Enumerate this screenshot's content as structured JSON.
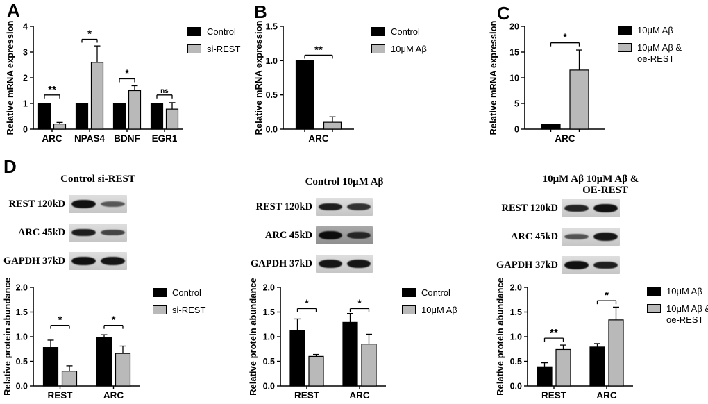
{
  "figure": {
    "panel_labels": {
      "a": "A",
      "b": "B",
      "c": "C",
      "d": "D"
    },
    "colors": {
      "series_black": "#000000",
      "series_gray": "#b9b9b9",
      "blot_bg_light": "#d9d9d9",
      "blot_bg_dark": "#a8a8a8"
    }
  },
  "chart_data": [
    {
      "id": "a",
      "panel": "A",
      "type": "bar",
      "title": "",
      "xlabel": "",
      "ylabel": "Relative mRNA expression",
      "ylim": [
        0,
        4
      ],
      "yticks": [
        "0",
        "1",
        "2",
        "3",
        "4"
      ],
      "categories": [
        "ARC",
        "NPAS4",
        "BDNF",
        "EGR1"
      ],
      "series": [
        {
          "name": "Control",
          "color": "#000000",
          "values": [
            1.0,
            1.0,
            1.0,
            1.0
          ],
          "errors": [
            0,
            0,
            0,
            0
          ]
        },
        {
          "name": "si-REST",
          "color": "#b9b9b9",
          "values": [
            0.2,
            2.6,
            1.5,
            0.78
          ],
          "errors": [
            0.06,
            0.64,
            0.19,
            0.25
          ]
        }
      ],
      "significance": [
        {
          "label": "**",
          "y": 1.33
        },
        {
          "label": "*",
          "y": 3.5
        },
        {
          "label": "*",
          "y": 1.96
        },
        {
          "label": "ns",
          "y": 1.33
        }
      ],
      "legend_position": "right"
    },
    {
      "id": "b",
      "panel": "B",
      "type": "bar",
      "title": "",
      "xlabel": "",
      "ylabel": "Relative mRNA expression",
      "ylim": [
        0,
        1.5
      ],
      "yticks": [
        "0.0",
        "0.5",
        "1.0",
        "1.5"
      ],
      "categories": [
        "ARC"
      ],
      "series": [
        {
          "name": "Control",
          "color": "#000000",
          "values": [
            1.0
          ],
          "errors": [
            0
          ]
        },
        {
          "name": "10μM Aβ",
          "color": "#b9b9b9",
          "values": [
            0.1
          ],
          "errors": [
            0.08
          ]
        }
      ],
      "significance": [
        {
          "label": "**",
          "y": 1.08
        }
      ],
      "legend_position": "right"
    },
    {
      "id": "c",
      "panel": "C",
      "type": "bar",
      "title": "",
      "xlabel": "",
      "ylabel": "Relative mRNA expression",
      "ylim": [
        0,
        20
      ],
      "yticks": [
        "0",
        "5",
        "10",
        "15",
        "20"
      ],
      "categories": [
        "ARC"
      ],
      "series": [
        {
          "name": "10μM Aβ",
          "color": "#000000",
          "values": [
            1.0
          ],
          "errors": [
            0
          ]
        },
        {
          "name": "10μM Aβ & oe-REST",
          "legend_lines": [
            "10μM Aβ &",
            "oe-REST"
          ],
          "color": "#b9b9b9",
          "values": [
            11.5
          ],
          "errors": [
            3.9
          ]
        }
      ],
      "significance": [
        {
          "label": "*",
          "y": 16.8
        }
      ],
      "legend_position": "right"
    },
    {
      "id": "d1",
      "panel": "D",
      "type": "bar",
      "title": "",
      "xlabel": "",
      "ylabel": "Relative protein abundance",
      "ylim": [
        0,
        2
      ],
      "yticks": [
        "0.0",
        "0.5",
        "1.0",
        "1.5",
        "2.0"
      ],
      "categories": [
        "REST",
        "ARC"
      ],
      "series": [
        {
          "name": "Control",
          "color": "#000000",
          "values": [
            0.78,
            0.98
          ],
          "errors": [
            0.15,
            0.06
          ]
        },
        {
          "name": "si-REST",
          "color": "#b9b9b9",
          "values": [
            0.3,
            0.66
          ],
          "errors": [
            0.11,
            0.15
          ]
        }
      ],
      "significance": [
        {
          "label": "*",
          "y": 1.23
        },
        {
          "label": "*",
          "y": 1.23
        }
      ],
      "legend_position": "right"
    },
    {
      "id": "d2",
      "panel": "D",
      "type": "bar",
      "title": "",
      "xlabel": "",
      "ylabel": "Relative protein abundance",
      "ylim": [
        0,
        2
      ],
      "yticks": [
        "0.0",
        "0.5",
        "1.0",
        "1.5",
        "2.0"
      ],
      "categories": [
        "REST",
        "ARC"
      ],
      "series": [
        {
          "name": "Control",
          "color": "#000000",
          "values": [
            1.13,
            1.29
          ],
          "errors": [
            0.23,
            0.18
          ]
        },
        {
          "name": "10μM Aβ",
          "color": "#b9b9b9",
          "values": [
            0.6,
            0.85
          ],
          "errors": [
            0.04,
            0.2
          ]
        }
      ],
      "significance": [
        {
          "label": "*",
          "y": 1.57
        },
        {
          "label": "*",
          "y": 1.57
        }
      ],
      "legend_position": "right"
    },
    {
      "id": "d3",
      "panel": "D",
      "type": "bar",
      "title": "",
      "xlabel": "",
      "ylabel": "Relative protein abundance",
      "ylim": [
        0,
        2
      ],
      "yticks": [
        "0.0",
        "0.5",
        "1.0",
        "1.5",
        "2.0"
      ],
      "categories": [
        "REST",
        "ARC"
      ],
      "series": [
        {
          "name": "10μM Aβ",
          "color": "#000000",
          "values": [
            0.39,
            0.79
          ],
          "errors": [
            0.08,
            0.07
          ]
        },
        {
          "name": "10μM Aβ & oe-REST",
          "legend_lines": [
            "10μM Aβ &",
            "oe-REST"
          ],
          "color": "#b9b9b9",
          "values": [
            0.74,
            1.34
          ],
          "errors": [
            0.09,
            0.26
          ]
        }
      ],
      "significance": [
        {
          "label": "**",
          "y": 0.97
        },
        {
          "label": "*",
          "y": 1.73
        }
      ],
      "legend_position": "right"
    }
  ],
  "blots": [
    {
      "header_lines": [
        "Control si-REST"
      ],
      "rows": [
        {
          "label": "REST 120kD",
          "lanes": [
            0.95,
            0.4
          ]
        },
        {
          "label": "ARC 45kD",
          "lanes": [
            0.85,
            0.55
          ]
        },
        {
          "label": "GAPDH 37kD",
          "lanes": [
            0.95,
            0.9
          ]
        }
      ]
    },
    {
      "header_lines": [
        "Control 10μM Aβ"
      ],
      "rows": [
        {
          "label": "REST 120kD",
          "lanes": [
            0.85,
            0.7
          ]
        },
        {
          "label": "ARC 45kD",
          "lanes": [
            0.97,
            0.72
          ],
          "box": "#a8a8a8"
        },
        {
          "label": "GAPDH 37kD",
          "lanes": [
            0.9,
            0.9
          ]
        }
      ]
    },
    {
      "header_lines": [
        "10μM Aβ 10μM Aβ &",
        "OE-REST"
      ],
      "rows": [
        {
          "label": "REST 120kD",
          "lanes": [
            0.8,
            0.95
          ]
        },
        {
          "label": "ARC 45kD",
          "lanes": [
            0.45,
            0.9
          ]
        },
        {
          "label": "GAPDH 37kD",
          "lanes": [
            0.95,
            0.85
          ]
        }
      ]
    }
  ]
}
